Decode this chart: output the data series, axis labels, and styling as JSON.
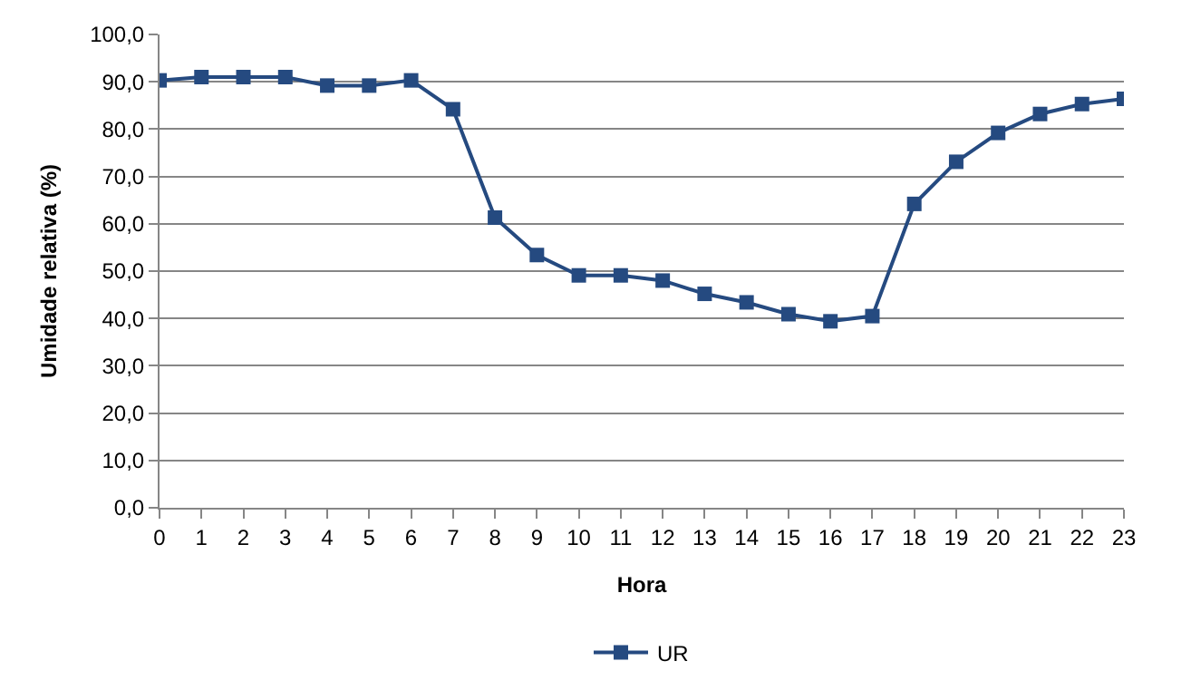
{
  "chart_data": {
    "type": "line",
    "xlabel": "Hora",
    "ylabel": "Umidade relativa (%)",
    "x": [
      0,
      1,
      2,
      3,
      4,
      5,
      6,
      7,
      8,
      9,
      10,
      11,
      12,
      13,
      14,
      15,
      16,
      17,
      18,
      19,
      20,
      21,
      22,
      23
    ],
    "series": [
      {
        "name": "UR",
        "color": "#254a80",
        "values": [
          90.3,
          91.0,
          91.0,
          91.0,
          89.2,
          89.2,
          90.3,
          84.2,
          61.3,
          53.4,
          49.1,
          49.1,
          48.0,
          45.2,
          43.4,
          40.9,
          39.4,
          40.5,
          64.2,
          73.1,
          79.2,
          83.2,
          85.3,
          86.4
        ]
      }
    ],
    "xlim": [
      0,
      23
    ],
    "xticks": [
      0,
      1,
      2,
      3,
      4,
      5,
      6,
      7,
      8,
      9,
      10,
      11,
      12,
      13,
      14,
      15,
      16,
      17,
      18,
      19,
      20,
      21,
      22,
      23
    ],
    "ylim": [
      0,
      100
    ],
    "yticks": [
      {
        "value": 0,
        "label": "0,0"
      },
      {
        "value": 10,
        "label": "10,0"
      },
      {
        "value": 20,
        "label": "20,0"
      },
      {
        "value": 30,
        "label": "30,0"
      },
      {
        "value": 40,
        "label": "40,0"
      },
      {
        "value": 50,
        "label": "50,0"
      },
      {
        "value": 60,
        "label": "60,0"
      },
      {
        "value": 70,
        "label": "70,0"
      },
      {
        "value": 80,
        "label": "80,0"
      },
      {
        "value": 90,
        "label": "90,0"
      },
      {
        "value": 100,
        "label": "100,0"
      }
    ],
    "grid": "y",
    "legend": "bottom",
    "marker": "square",
    "line_style": "solid"
  }
}
